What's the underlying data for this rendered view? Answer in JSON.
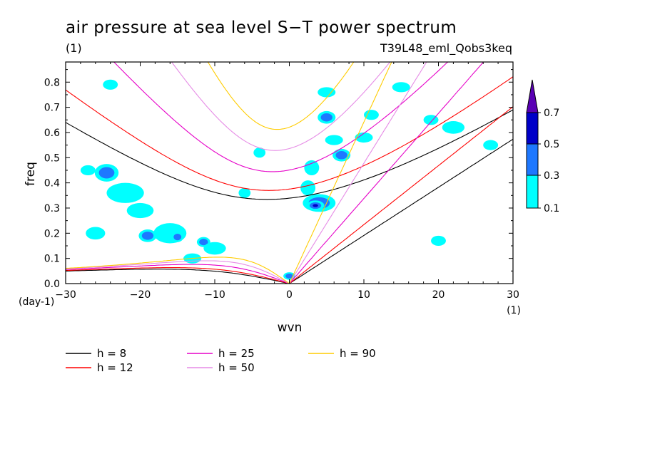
{
  "chart_data": {
    "type": "contour",
    "title": "air pressure at sea level S−T power spectrum",
    "title_units": "(1)",
    "experiment": "T39L48_eml_Qobs3keq",
    "xlabel": "wvn",
    "x_units": "(1)",
    "ylabel": "freq",
    "y_units": "(day-1)",
    "xlim": [
      -30,
      30
    ],
    "ylim": [
      0,
      0.88
    ],
    "x_ticks": [
      "−30",
      "−20",
      "−10",
      "0",
      "10",
      "20",
      "30"
    ],
    "x_tick_values": [
      -30,
      -20,
      -10,
      0,
      10,
      20,
      30
    ],
    "y_ticks": [
      "0.0",
      "0.1",
      "0.2",
      "0.3",
      "0.4",
      "0.5",
      "0.6",
      "0.7",
      "0.8"
    ],
    "y_tick_values": [
      0,
      0.1,
      0.2,
      0.3,
      0.4,
      0.5,
      0.6,
      0.7,
      0.8
    ],
    "colorbar": {
      "levels": [
        "0.1",
        "0.3",
        "0.5",
        "0.7"
      ],
      "level_values": [
        0.1,
        0.3,
        0.5,
        0.7
      ],
      "colors": [
        "#00ffff",
        "#1e78ff",
        "#0000c8",
        "#5a00b4"
      ]
    },
    "contour_colors": {
      "light": "#00ffff",
      "medium": "#1e78ff",
      "dark": "#0000c8"
    },
    "blobs": [
      {
        "x": -24.5,
        "y": 0.44,
        "rx": 1.6,
        "ry": 0.035,
        "level": 1
      },
      {
        "x": -22,
        "y": 0.36,
        "rx": 2.5,
        "ry": 0.04,
        "level": 0
      },
      {
        "x": -20,
        "y": 0.29,
        "rx": 1.8,
        "ry": 0.03,
        "level": 0
      },
      {
        "x": -19,
        "y": 0.19,
        "rx": 1.2,
        "ry": 0.025,
        "level": 1
      },
      {
        "x": -16,
        "y": 0.2,
        "rx": 2.2,
        "ry": 0.04,
        "level": 0
      },
      {
        "x": -15,
        "y": 0.185,
        "rx": 0.8,
        "ry": 0.02,
        "level": 1
      },
      {
        "x": -11.5,
        "y": 0.165,
        "rx": 0.9,
        "ry": 0.02,
        "level": 1
      },
      {
        "x": -10,
        "y": 0.14,
        "rx": 1.5,
        "ry": 0.025,
        "level": 0
      },
      {
        "x": -13,
        "y": 0.1,
        "rx": 1.2,
        "ry": 0.02,
        "level": 0
      },
      {
        "x": -26,
        "y": 0.2,
        "rx": 1.3,
        "ry": 0.025,
        "level": 0
      },
      {
        "x": -27,
        "y": 0.45,
        "rx": 1.0,
        "ry": 0.02,
        "level": 0
      },
      {
        "x": -24,
        "y": 0.79,
        "rx": 1.0,
        "ry": 0.02,
        "level": 0
      },
      {
        "x": -6,
        "y": 0.36,
        "rx": 0.8,
        "ry": 0.02,
        "level": 0
      },
      {
        "x": -4,
        "y": 0.52,
        "rx": 0.8,
        "ry": 0.02,
        "level": 0
      },
      {
        "x": 0,
        "y": 0.03,
        "rx": 0.8,
        "ry": 0.015,
        "level": 1
      },
      {
        "x": 3,
        "y": 0.46,
        "rx": 1.0,
        "ry": 0.03,
        "level": 0
      },
      {
        "x": 2.5,
        "y": 0.38,
        "rx": 1.0,
        "ry": 0.03,
        "level": 0
      },
      {
        "x": 4,
        "y": 0.32,
        "rx": 2.2,
        "ry": 0.035,
        "level": 1
      },
      {
        "x": 3.5,
        "y": 0.31,
        "rx": 1.2,
        "ry": 0.02,
        "level": 2
      },
      {
        "x": 5,
        "y": 0.66,
        "rx": 1.2,
        "ry": 0.025,
        "level": 1
      },
      {
        "x": 7,
        "y": 0.51,
        "rx": 1.2,
        "ry": 0.025,
        "level": 1
      },
      {
        "x": 6,
        "y": 0.57,
        "rx": 1.2,
        "ry": 0.02,
        "level": 0
      },
      {
        "x": 5,
        "y": 0.76,
        "rx": 1.2,
        "ry": 0.02,
        "level": 0
      },
      {
        "x": 10,
        "y": 0.58,
        "rx": 1.2,
        "ry": 0.02,
        "level": 0
      },
      {
        "x": 11,
        "y": 0.67,
        "rx": 1.0,
        "ry": 0.02,
        "level": 0
      },
      {
        "x": 15,
        "y": 0.78,
        "rx": 1.2,
        "ry": 0.02,
        "level": 0
      },
      {
        "x": 19,
        "y": 0.65,
        "rx": 1.0,
        "ry": 0.02,
        "level": 0
      },
      {
        "x": 22,
        "y": 0.62,
        "rx": 1.5,
        "ry": 0.025,
        "level": 0
      },
      {
        "x": 20,
        "y": 0.17,
        "rx": 1.0,
        "ry": 0.02,
        "level": 0
      },
      {
        "x": 27,
        "y": 0.55,
        "rx": 1.0,
        "ry": 0.02,
        "level": 0
      }
    ],
    "series": [
      {
        "name": "h =  8",
        "kind": "ER",
        "h": 8,
        "color": "#000000"
      },
      {
        "name": "h = 12",
        "kind": "ER",
        "h": 12,
        "color": "#ff0000"
      },
      {
        "name": "h = 25",
        "kind": "ER",
        "h": 25,
        "color": "#e600c8"
      },
      {
        "name": "h = 50",
        "kind": "ER",
        "h": 50,
        "color": "#e68ce6"
      },
      {
        "name": "h = 90",
        "kind": "ER",
        "h": 90,
        "color": "#ffcc00"
      }
    ]
  }
}
